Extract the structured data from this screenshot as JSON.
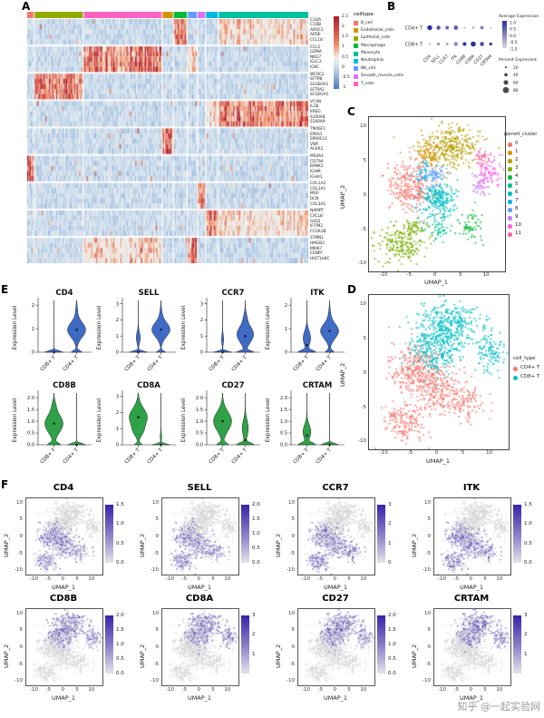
{
  "chart_data": {
    "watermark": "知乎 @一起实验网",
    "panelA": {
      "label": "A",
      "type": "heatmap",
      "gene_groups": [
        [
          "C1QA",
          "C1QB",
          "APOC1",
          "APOE",
          "CCL18"
        ],
        [
          "CCL5",
          "GZMA",
          "NKG7",
          "IGLC2",
          "IGKC"
        ],
        [
          "WFDC2",
          "SFTPB",
          "SCGB3A1",
          "SFTPA2",
          "SCGB1A1"
        ],
        [
          "VCAN",
          "IL1B",
          "EREG",
          "S100A8",
          "S100A9"
        ],
        [
          "TM4SF1",
          "EPAS1",
          "SPARCL1",
          "VWF",
          "ACKR1"
        ],
        [
          "MS4A1",
          "CD79A",
          "BANK1",
          "IGHM",
          "IGHA1"
        ],
        [
          "COL1A2",
          "COL1A1",
          "MGP",
          "DCN",
          "COL3A1"
        ],
        [
          "NAMPT",
          "CXCL8",
          "G0S2",
          "IFITM2",
          "FCGR3B"
        ],
        [
          "STMN1",
          "HMGB2",
          "MKI67",
          "CENPF",
          "HIST1H4C"
        ]
      ],
      "colorbar_ticks": [
        "2.5",
        "2",
        "1.5",
        "1",
        "0.5",
        "0",
        "-0.5",
        "-1"
      ],
      "celltype_legend": {
        "title": "celltype",
        "items": [
          {
            "label": "B_cell",
            "color": "#F8766D"
          },
          {
            "label": "Endothelial_cells",
            "color": "#D39200"
          },
          {
            "label": "Epithelial_cells",
            "color": "#93AA00"
          },
          {
            "label": "Macrophage",
            "color": "#00BA38"
          },
          {
            "label": "Monocyte",
            "color": "#00C19F"
          },
          {
            "label": "Neutrophils",
            "color": "#00B9E3"
          },
          {
            "label": "NK_cell",
            "color": "#619CFF"
          },
          {
            "label": "Smooth_muscle_cells",
            "color": "#DB72FB"
          },
          {
            "label": "T_cells",
            "color": "#FF61C3"
          }
        ]
      },
      "column_segments": [
        {
          "celltype": "B_cell",
          "frac": 0.025
        },
        {
          "celltype": "Epithelial_cells",
          "frac": 0.175
        },
        {
          "celltype": "T_cells",
          "frac": 0.28
        },
        {
          "celltype": "Endothelial_cells",
          "frac": 0.04
        },
        {
          "celltype": "Macrophage",
          "frac": 0.05
        },
        {
          "celltype": "NK_cell",
          "frac": 0.035
        },
        {
          "celltype": "Smooth_muscle_cells",
          "frac": 0.03
        },
        {
          "celltype": "Neutrophils",
          "frac": 0.045
        },
        {
          "celltype": "Monocyte",
          "frac": 0.32
        }
      ],
      "block_high_in": [
        [
          "Macrophage",
          "Monocyte"
        ],
        [
          "T_cells",
          "NK_cell"
        ],
        [
          "Epithelial_cells"
        ],
        [
          "Monocyte",
          "Neutrophils"
        ],
        [
          "Endothelial_cells"
        ],
        [
          "B_cell"
        ],
        [
          "Smooth_muscle_cells"
        ],
        [
          "Neutrophils",
          "Monocyte"
        ],
        [
          "NK_cell",
          "T_cells"
        ]
      ]
    },
    "panelB": {
      "label": "B",
      "type": "dotplot",
      "rows": [
        "CD4+ T",
        "CD8+ T"
      ],
      "genes": [
        "CD4",
        "SELL",
        "CCR7",
        "ITK",
        "CD8B",
        "CD8A",
        "CD27",
        "CRTAM"
      ],
      "pct": [
        [
          60,
          45,
          35,
          50,
          8,
          15,
          35,
          6
        ],
        [
          12,
          28,
          18,
          45,
          42,
          62,
          48,
          30
        ]
      ],
      "avg": [
        [
          1.0,
          0.5,
          0.45,
          0.4,
          -0.5,
          -0.4,
          0.1,
          -0.3
        ],
        [
          -0.7,
          -0.3,
          -0.2,
          -0.1,
          0.9,
          1.0,
          0.6,
          0.8
        ]
      ],
      "avg_legend": {
        "title": "Average Expression",
        "ticks": [
          "1.0",
          "0.5",
          "0.0",
          "-0.5",
          "-1.0"
        ]
      },
      "pct_legend": {
        "title": "Percent Expressed",
        "ticks": [
          "20",
          "40",
          "60",
          "80"
        ]
      }
    },
    "panelC": {
      "label": "C",
      "type": "scatter",
      "legend_title": "garnett_cluster",
      "xlabel": "UMAP_1",
      "ylabel": "UMAP_2",
      "xticks": [
        -10,
        -5,
        0,
        5,
        10
      ],
      "yticks": [
        -10,
        -5,
        0,
        5,
        10
      ],
      "xlim": [
        -13,
        13.5
      ],
      "ylim": [
        -11,
        11.5
      ],
      "clusters": [
        {
          "id": "0",
          "color": "#F8766D",
          "blobs": [
            [
              -5,
              1.5,
              2.0,
              1.8,
              280
            ]
          ]
        },
        {
          "id": "1",
          "color": "#DE8C00",
          "blobs": [
            [
              -1.5,
              6.3,
              1.2,
              1.0,
              70
            ]
          ]
        },
        {
          "id": "2",
          "color": "#B79F00",
          "blobs": [
            [
              2.5,
              7.4,
              2.8,
              1.6,
              330
            ]
          ]
        },
        {
          "id": "3",
          "color": "#7CAE00",
          "blobs": [
            [
              -7,
              -7,
              2.2,
              1.4,
              190
            ],
            [
              -4,
              -4.5,
              1.2,
              1.0,
              60
            ]
          ]
        },
        {
          "id": "4",
          "color": "#00BA38",
          "blobs": [
            [
              6.5,
              -4.5,
              1.3,
              1.1,
              60
            ]
          ]
        },
        {
          "id": "5",
          "color": "#00C08B",
          "blobs": [
            [
              0.5,
              -4.8,
              1.1,
              0.9,
              45
            ]
          ]
        },
        {
          "id": "6",
          "color": "#00BFC4",
          "blobs": [
            [
              0.5,
              -0.5,
              1.9,
              1.5,
              240
            ]
          ]
        },
        {
          "id": "7",
          "color": "#00B4F0",
          "blobs": [
            [
              -2.5,
              3.6,
              0.9,
              0.8,
              45
            ]
          ]
        },
        {
          "id": "8",
          "color": "#619CFF",
          "blobs": [
            [
              0,
              2.9,
              0.9,
              0.8,
              55
            ]
          ]
        },
        {
          "id": "9",
          "color": "#C77CFF",
          "blobs": [
            [
              8.5,
              1.4,
              0.9,
              0.8,
              40
            ]
          ]
        },
        {
          "id": "10",
          "color": "#F564E3",
          "blobs": [
            [
              10.4,
              3.4,
              1.3,
              1.2,
              90
            ]
          ]
        },
        {
          "id": "11",
          "color": "#FF64B0",
          "blobs": [
            [
              9,
              5.6,
              0.8,
              0.7,
              35
            ]
          ]
        }
      ]
    },
    "panelD": {
      "label": "D",
      "type": "scatter",
      "legend_title": "cell_type",
      "xlabel": "UMAP_1",
      "ylabel": "UMAP_2",
      "xticks": [
        -10,
        -5,
        0,
        5,
        10
      ],
      "yticks": [
        -10,
        -5,
        0,
        5,
        10
      ],
      "xlim": [
        -13,
        13.5
      ],
      "ylim": [
        -11,
        11.5
      ],
      "groups": [
        {
          "label": "CD4+ T",
          "color": "#F8766D",
          "region": "cd4",
          "blobs": [
            [
              -4.5,
              0.5,
              2.4,
              2.0,
              300
            ],
            [
              0,
              -2.5,
              2.4,
              1.8,
              220
            ],
            [
              -6.5,
              -7,
              2.2,
              1.4,
              160
            ],
            [
              5.5,
              -4,
              1.8,
              1.4,
              90
            ]
          ]
        },
        {
          "label": "CD8+ T",
          "color": "#00BFC4",
          "region": "cd8",
          "blobs": [
            [
              2,
              7,
              3.0,
              1.8,
              380
            ],
            [
              0,
              2.8,
              2.0,
              1.6,
              160
            ],
            [
              10,
              3.2,
              1.6,
              1.4,
              110
            ],
            [
              -3,
              4,
              1.2,
              1.0,
              60
            ]
          ]
        }
      ]
    },
    "panelE": {
      "label": "E",
      "type": "violin",
      "ylabel": "Expression Level",
      "group_labels": [
        "CD8+ T",
        "CD4+ T"
      ],
      "plots": [
        {
          "gene": "CD4",
          "color": "#3F6BC5",
          "ymax": 2.2,
          "ytick_v": [
            2,
            1,
            0
          ],
          "ytick_l": [
            "2",
            "1",
            "0"
          ],
          "violins": [
            {
              "comps": [
                [
                  0,
                  0.06,
                  1
                ]
              ],
              "dot": 0
            },
            {
              "comps": [
                [
                  0,
                  0.07,
                  0.5
                ],
                [
                  0.95,
                  0.32,
                  0.85
                ],
                [
                  1.8,
                  0.22,
                  0.07
                ]
              ],
              "dot": 0.95
            }
          ]
        },
        {
          "gene": "SELL",
          "color": "#3F6BC5",
          "ymax": 3.2,
          "ytick_v": [
            3,
            2,
            1,
            0
          ],
          "ytick_l": [
            "3",
            "2",
            "1",
            "0"
          ],
          "violins": [
            {
              "comps": [
                [
                  0,
                  0.07,
                  0.9
                ],
                [
                  0.9,
                  0.35,
                  0.2
                ]
              ],
              "dot": 0
            },
            {
              "comps": [
                [
                  0,
                  0.08,
                  0.45
                ],
                [
                  1.4,
                  0.45,
                  0.85
                ],
                [
                  2.5,
                  0.3,
                  0.06
                ]
              ],
              "dot": 1.4
            }
          ]
        },
        {
          "gene": "CCR7",
          "color": "#3F6BC5",
          "ymax": 3.2,
          "ytick_v": [
            3,
            2,
            1,
            0
          ],
          "ytick_l": [
            "3",
            "2",
            "1",
            "0"
          ],
          "violins": [
            {
              "comps": [
                [
                  0,
                  0.07,
                  1
                ],
                [
                  0.8,
                  0.3,
                  0.12
                ]
              ],
              "dot": 0
            },
            {
              "comps": [
                [
                  0,
                  0.08,
                  0.6
                ],
                [
                  1.1,
                  0.5,
                  0.6
                ],
                [
                  2.2,
                  0.3,
                  0.08
                ]
              ],
              "dot": 1
            }
          ]
        },
        {
          "gene": "ITK",
          "color": "#3F6BC5",
          "ymax": 2.2,
          "ytick_v": [
            2,
            1,
            0
          ],
          "ytick_l": [
            "2",
            "1",
            "0"
          ],
          "violins": [
            {
              "comps": [
                [
                  0,
                  0.08,
                  0.8
                ],
                [
                  0.6,
                  0.3,
                  0.35
                ]
              ],
              "dot": 0.3
            },
            {
              "comps": [
                [
                  0,
                  0.08,
                  0.4
                ],
                [
                  0.9,
                  0.32,
                  0.85
                ],
                [
                  1.7,
                  0.2,
                  0.06
                ]
              ],
              "dot": 0.9
            }
          ]
        },
        {
          "gene": "CD8B",
          "color": "#2FA148",
          "ymax": 2.2,
          "ytick_v": [
            2,
            1.5,
            1,
            0.5,
            0
          ],
          "ytick_l": [
            "2.0",
            "1.5",
            "1.0",
            "0.5",
            "0.0"
          ],
          "violins": [
            {
              "comps": [
                [
                  0,
                  0.08,
                  0.55
                ],
                [
                  0.9,
                  0.38,
                  0.8
                ],
                [
                  1.7,
                  0.2,
                  0.1
                ]
              ],
              "dot": 0.9
            },
            {
              "comps": [
                [
                  0,
                  0.06,
                  1
                ]
              ],
              "dot": 0
            }
          ]
        },
        {
          "gene": "CD8A",
          "color": "#2FA148",
          "ymax": 3.2,
          "ytick_v": [
            3,
            2,
            1,
            0
          ],
          "ytick_l": [
            "3",
            "2",
            "1",
            "0"
          ],
          "violins": [
            {
              "comps": [
                [
                  0,
                  0.09,
                  0.4
                ],
                [
                  0.8,
                  0.3,
                  0.3
                ],
                [
                  1.7,
                  0.55,
                  0.9
                ]
              ],
              "dot": 1.7
            },
            {
              "comps": [
                [
                  0,
                  0.06,
                  1
                ],
                [
                  0.5,
                  0.25,
                  0.08
                ]
              ],
              "dot": 0
            }
          ]
        },
        {
          "gene": "CD27",
          "color": "#2FA148",
          "ymax": 2.2,
          "ytick_v": [
            2,
            1.5,
            1,
            0.5,
            0
          ],
          "ytick_l": [
            "2.0",
            "1.5",
            "1.0",
            "0.5",
            "0.0"
          ],
          "violins": [
            {
              "comps": [
                [
                  0,
                  0.08,
                  0.5
                ],
                [
                  1,
                  0.4,
                  0.8
                ]
              ],
              "dot": 1
            },
            {
              "comps": [
                [
                  0,
                  0.08,
                  0.85
                ],
                [
                  0.7,
                  0.35,
                  0.3
                ]
              ],
              "dot": 0.2
            }
          ]
        },
        {
          "gene": "CRTAM",
          "color": "#2FA148",
          "ymax": 2.2,
          "ytick_v": [
            2,
            1.5,
            1,
            0.5,
            0
          ],
          "ytick_l": [
            "2.0",
            "1.5",
            "1.0",
            "0.5",
            "0.0"
          ],
          "violins": [
            {
              "comps": [
                [
                  0,
                  0.08,
                  0.85
                ],
                [
                  0.55,
                  0.3,
                  0.4
                ]
              ],
              "dot": 0.4
            },
            {
              "comps": [
                [
                  0,
                  0.06,
                  1
                ]
              ],
              "dot": 0
            }
          ]
        }
      ]
    },
    "panelF": {
      "label": "F",
      "type": "feature-scatter",
      "xlabel": "UMAP_1",
      "ylabel": "UMAP_2",
      "xticks": [
        -10,
        -5,
        0,
        5,
        10
      ],
      "yticks": [
        -10,
        -5,
        0,
        5,
        10
      ],
      "plots": [
        {
          "gene": "CD4",
          "region": "cd4",
          "cbticks": [
            "1.5",
            "1.0",
            "0.5",
            "0.0"
          ]
        },
        {
          "gene": "SELL",
          "region": "cd4",
          "cbticks": [
            "2.0",
            "1.5",
            "1.0",
            "0.5",
            "0.0"
          ]
        },
        {
          "gene": "CCR7",
          "region": "cd4",
          "cbticks": [
            "3",
            "2",
            "1",
            "0"
          ]
        },
        {
          "gene": "ITK",
          "region": "cd4",
          "cbticks": [
            "1.5",
            "1.0",
            "0.5",
            "0.0"
          ]
        },
        {
          "gene": "CD8B",
          "region": "cd8",
          "cbticks": [
            "2.0",
            "1.5",
            "1.0",
            "0.5",
            "0.0"
          ]
        },
        {
          "gene": "CD8A",
          "region": "cd8",
          "cbticks": [
            "3",
            "2",
            "1"
          ]
        },
        {
          "gene": "CD27",
          "region": "cd8",
          "cbticks": [
            "2.0",
            "1.5",
            "1.0",
            "0.5",
            "0.0"
          ]
        },
        {
          "gene": "CRTAM",
          "region": "cd8",
          "cbticks": [
            "3",
            "2",
            "1"
          ]
        }
      ]
    }
  }
}
